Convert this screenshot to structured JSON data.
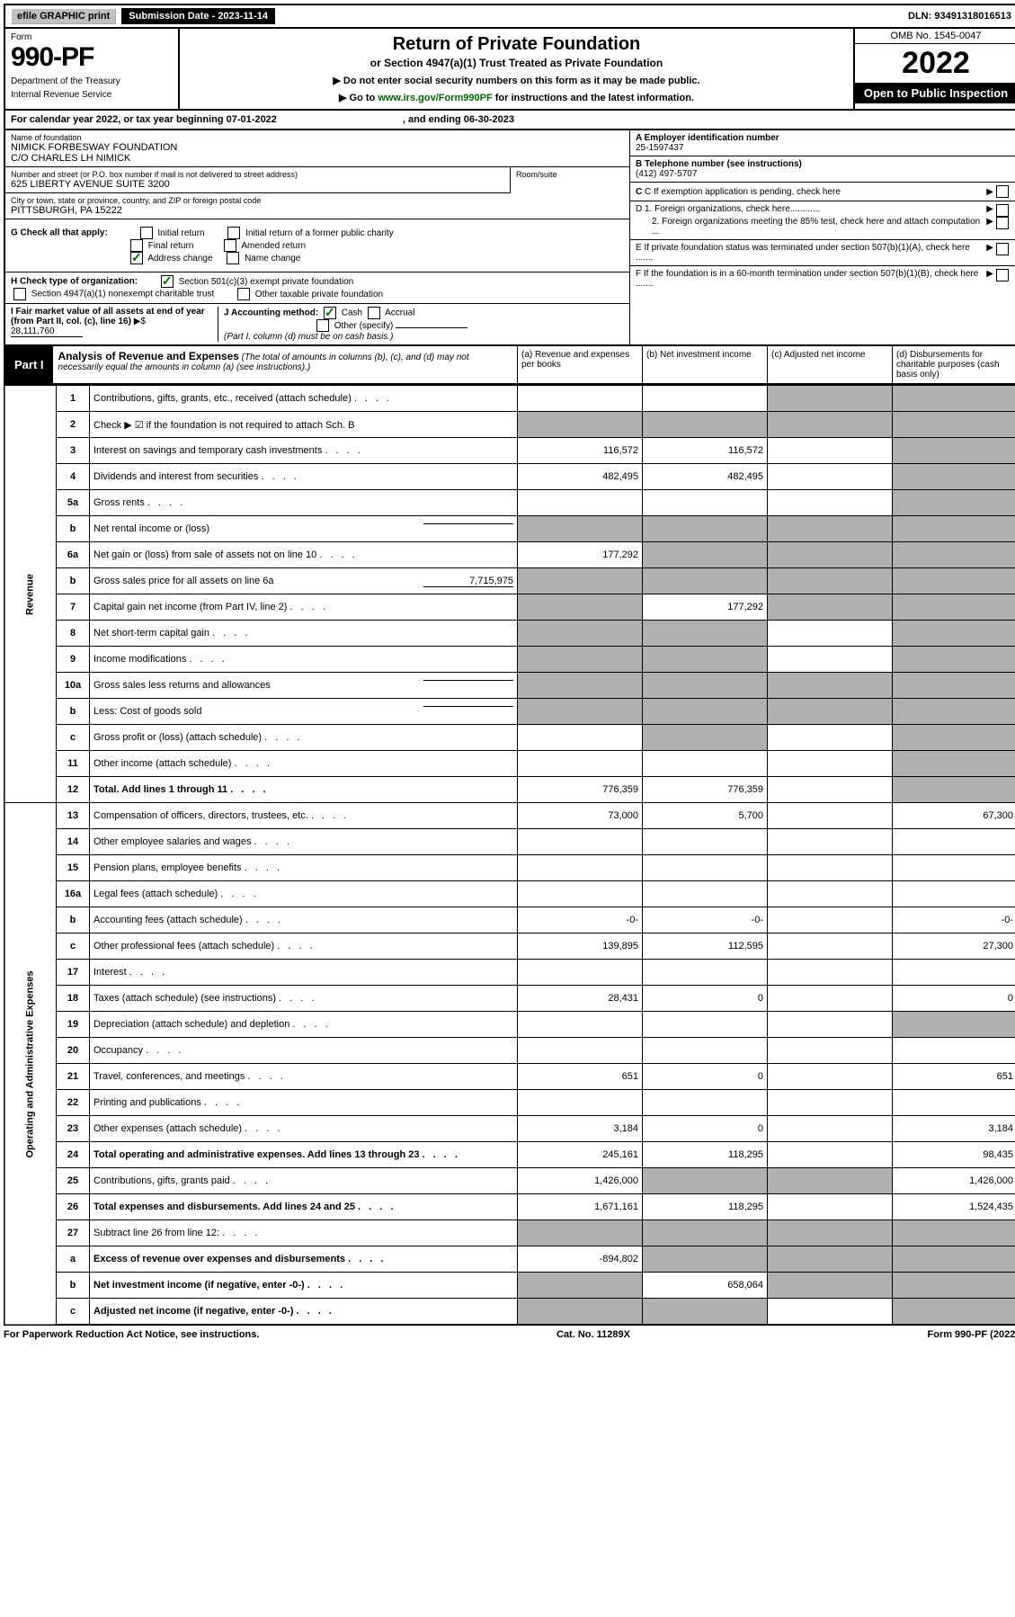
{
  "topbar": {
    "efile": "efile GRAPHIC print",
    "submission": "Submission Date - 2023-11-14",
    "dln": "DLN: 93491318016513"
  },
  "header": {
    "form": "Form",
    "number": "990-PF",
    "dept": "Department of the Treasury",
    "irs": "Internal Revenue Service",
    "title": "Return of Private Foundation",
    "subtitle": "or Section 4947(a)(1) Trust Treated as Private Foundation",
    "note1": "▶ Do not enter social security numbers on this form as it may be made public.",
    "note2a": "▶ Go to ",
    "note2link": "www.irs.gov/Form990PF",
    "note2b": " for instructions and the latest information.",
    "omb": "OMB No. 1545-0047",
    "year": "2022",
    "open": "Open to Public Inspection"
  },
  "calendar": {
    "text1": "For calendar year 2022, or tax year beginning 07-01-2022",
    "text2": ", and ending 06-30-2023"
  },
  "id": {
    "nameLabel": "Name of foundation",
    "name1": "NIMICK FORBESWAY FOUNDATION",
    "name2": "C/O CHARLES LH NIMICK",
    "addrLabel": "Number and street (or P.O. box number if mail is not delivered to street address)",
    "addr": "625 LIBERTY AVENUE SUITE 3200",
    "roomLabel": "Room/suite",
    "cityLabel": "City or town, state or province, country, and ZIP or foreign postal code",
    "city": "PITTSBURGH, PA  15222",
    "aLabel": "A Employer identification number",
    "aVal": "25-1597437",
    "bLabel": "B Telephone number (see instructions)",
    "bVal": "(412) 497-5707",
    "cLabel": "C If exemption application is pending, check here",
    "d1": "D 1. Foreign organizations, check here............",
    "d2": "2. Foreign organizations meeting the 85% test, check here and attach computation ...",
    "e": "E  If private foundation status was terminated under section 507(b)(1)(A), check here .......",
    "f": "F  If the foundation is in a 60-month termination under section 507(b)(1)(B), check here .......",
    "gLabel": "G Check all that apply:",
    "gOpts": [
      "Initial return",
      "Initial return of a former public charity",
      "Final return",
      "Amended return",
      "Address change",
      "Name change"
    ],
    "hLabel": "H Check type of organization:",
    "h1": "Section 501(c)(3) exempt private foundation",
    "h2": "Section 4947(a)(1) nonexempt charitable trust",
    "h3": "Other taxable private foundation",
    "iLabel": "I Fair market value of all assets at end of year (from Part II, col. (c), line 16)",
    "iVal": "28,111,760",
    "jLabel": "J Accounting method:",
    "j1": "Cash",
    "j2": "Accrual",
    "j3": "Other (specify)",
    "jNote": "(Part I, column (d) must be on cash basis.)"
  },
  "part1": {
    "label": "Part I",
    "title": "Analysis of Revenue and Expenses",
    "titleNote": " (The total of amounts in columns (b), (c), and (d) may not necessarily equal the amounts in column (a) (see instructions).)",
    "colA": "(a)  Revenue and expenses per books",
    "colB": "(b)  Net investment income",
    "colC": "(c)  Adjusted net income",
    "colD": "(d)  Disbursements for charitable purposes (cash basis only)"
  },
  "sideRevenue": "Revenue",
  "sideExpenses": "Operating and Administrative Expenses",
  "rows": [
    {
      "n": "1",
      "d": "Contributions, gifts, grants, etc., received (attach schedule)",
      "a": "",
      "b": "",
      "cShaded": true,
      "dShaded": true
    },
    {
      "n": "2",
      "d": "Check ▶ ☑ if the foundation is not required to attach Sch. B",
      "dotsOnly": true,
      "aShaded": true,
      "bShaded": true,
      "cShaded": true,
      "dShaded": true
    },
    {
      "n": "3",
      "d": "Interest on savings and temporary cash investments",
      "a": "116,572",
      "b": "116,572",
      "c": "",
      "dShaded": true
    },
    {
      "n": "4",
      "d": "Dividends and interest from securities",
      "a": "482,495",
      "b": "482,495",
      "c": "",
      "dShaded": true
    },
    {
      "n": "5a",
      "d": "Gross rents",
      "a": "",
      "b": "",
      "c": "",
      "dShaded": true
    },
    {
      "n": "b",
      "d": "Net rental income or (loss)",
      "inline": "",
      "aShaded": true,
      "bShaded": true,
      "cShaded": true,
      "dShaded": true
    },
    {
      "n": "6a",
      "d": "Net gain or (loss) from sale of assets not on line 10",
      "a": "177,292",
      "bShaded": true,
      "cShaded": true,
      "dShaded": true
    },
    {
      "n": "b",
      "d": "Gross sales price for all assets on line 6a",
      "inline": "7,715,975",
      "aShaded": true,
      "bShaded": true,
      "cShaded": true,
      "dShaded": true
    },
    {
      "n": "7",
      "d": "Capital gain net income (from Part IV, line 2)",
      "aShaded": true,
      "b": "177,292",
      "cShaded": true,
      "dShaded": true
    },
    {
      "n": "8",
      "d": "Net short-term capital gain",
      "aShaded": true,
      "bShaded": true,
      "c": "",
      "dShaded": true
    },
    {
      "n": "9",
      "d": "Income modifications",
      "aShaded": true,
      "bShaded": true,
      "c": "",
      "dShaded": true
    },
    {
      "n": "10a",
      "d": "Gross sales less returns and allowances",
      "inline": "",
      "aShaded": true,
      "bShaded": true,
      "cShaded": true,
      "dShaded": true
    },
    {
      "n": "b",
      "d": "Less: Cost of goods sold",
      "inline": "",
      "aShaded": true,
      "bShaded": true,
      "cShaded": true,
      "dShaded": true
    },
    {
      "n": "c",
      "d": "Gross profit or (loss) (attach schedule)",
      "a": "",
      "bShaded": true,
      "c": "",
      "dShaded": true
    },
    {
      "n": "11",
      "d": "Other income (attach schedule)",
      "a": "",
      "b": "",
      "c": "",
      "dShaded": true
    },
    {
      "n": "12",
      "d": "Total. Add lines 1 through 11",
      "bold": true,
      "a": "776,359",
      "b": "776,359",
      "c": "",
      "dShaded": true
    },
    {
      "n": "13",
      "d": "Compensation of officers, directors, trustees, etc.",
      "a": "73,000",
      "b": "5,700",
      "c": "",
      "dCol": "67,300"
    },
    {
      "n": "14",
      "d": "Other employee salaries and wages",
      "a": "",
      "b": "",
      "c": "",
      "dCol": ""
    },
    {
      "n": "15",
      "d": "Pension plans, employee benefits",
      "a": "",
      "b": "",
      "c": "",
      "dCol": ""
    },
    {
      "n": "16a",
      "d": "Legal fees (attach schedule)",
      "a": "",
      "b": "",
      "c": "",
      "dCol": ""
    },
    {
      "n": "b",
      "d": "Accounting fees (attach schedule)",
      "a": "-0-",
      "b": "-0-",
      "c": "",
      "dCol": "-0-"
    },
    {
      "n": "c",
      "d": "Other professional fees (attach schedule)",
      "a": "139,895",
      "b": "112,595",
      "c": "",
      "dCol": "27,300"
    },
    {
      "n": "17",
      "d": "Interest",
      "a": "",
      "b": "",
      "c": "",
      "dCol": ""
    },
    {
      "n": "18",
      "d": "Taxes (attach schedule) (see instructions)",
      "a": "28,431",
      "b": "0",
      "c": "",
      "dCol": "0"
    },
    {
      "n": "19",
      "d": "Depreciation (attach schedule) and depletion",
      "a": "",
      "b": "",
      "c": "",
      "dShaded": true
    },
    {
      "n": "20",
      "d": "Occupancy",
      "a": "",
      "b": "",
      "c": "",
      "dCol": ""
    },
    {
      "n": "21",
      "d": "Travel, conferences, and meetings",
      "a": "651",
      "b": "0",
      "c": "",
      "dCol": "651"
    },
    {
      "n": "22",
      "d": "Printing and publications",
      "a": "",
      "b": "",
      "c": "",
      "dCol": ""
    },
    {
      "n": "23",
      "d": "Other expenses (attach schedule)",
      "a": "3,184",
      "b": "0",
      "c": "",
      "dCol": "3,184"
    },
    {
      "n": "24",
      "d": "Total operating and administrative expenses. Add lines 13 through 23",
      "bold": true,
      "a": "245,161",
      "b": "118,295",
      "c": "",
      "dCol": "98,435"
    },
    {
      "n": "25",
      "d": "Contributions, gifts, grants paid",
      "a": "1,426,000",
      "bShaded": true,
      "cShaded": true,
      "dCol": "1,426,000"
    },
    {
      "n": "26",
      "d": "Total expenses and disbursements. Add lines 24 and 25",
      "bold": true,
      "a": "1,671,161",
      "b": "118,295",
      "c": "",
      "dCol": "1,524,435"
    },
    {
      "n": "27",
      "d": "Subtract line 26 from line 12:",
      "aShaded": true,
      "bShaded": true,
      "cShaded": true,
      "dShaded": true
    },
    {
      "n": "a",
      "d": "Excess of revenue over expenses and disbursements",
      "bold": true,
      "a": "-894,802",
      "bShaded": true,
      "cShaded": true,
      "dShaded": true
    },
    {
      "n": "b",
      "d": "Net investment income (if negative, enter -0-)",
      "bold": true,
      "aShaded": true,
      "b": "658,064",
      "cShaded": true,
      "dShaded": true
    },
    {
      "n": "c",
      "d": "Adjusted net income (if negative, enter -0-)",
      "bold": true,
      "aShaded": true,
      "bShaded": true,
      "c": "",
      "dShaded": true
    }
  ],
  "footer": {
    "left": "For Paperwork Reduction Act Notice, see instructions.",
    "mid": "Cat. No. 11289X",
    "right": "Form 990-PF (2022)"
  }
}
